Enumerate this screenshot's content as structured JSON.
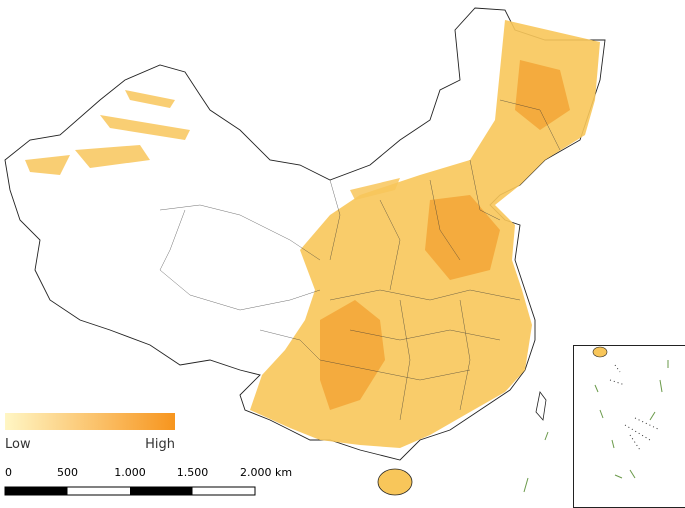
{
  "legend": {
    "low": "Low",
    "high": "High"
  },
  "scale_bar": {
    "labels": [
      "0",
      "500",
      "1.000",
      "1.500",
      "2.000 km"
    ]
  }
}
